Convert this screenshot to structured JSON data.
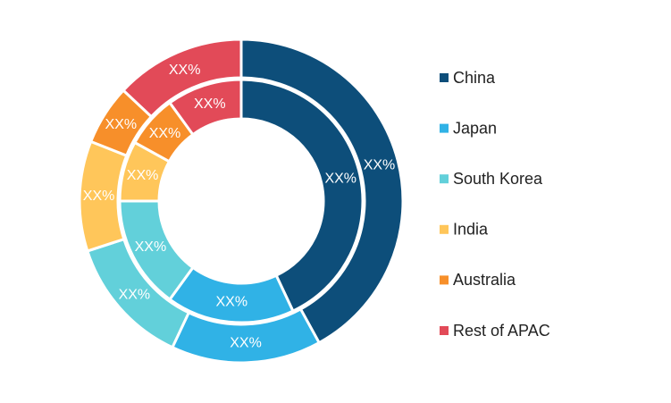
{
  "chart_data": {
    "type": "donut",
    "categories": [
      "China",
      "Japan",
      "South Korea",
      "India",
      "Australia",
      "Rest of APAC"
    ],
    "colors": [
      "#0d4e7a",
      "#30b2e6",
      "#62d0da",
      "#ffc65a",
      "#f78f2a",
      "#e24a58"
    ],
    "series": [
      {
        "values": [
          42,
          15,
          13,
          11,
          6,
          13
        ],
        "value_labels": [
          "XX%",
          "XX%",
          "XX%",
          "XX%",
          "XX%",
          "XX%"
        ]
      },
      {
        "values": [
          43,
          17,
          15,
          8,
          7,
          10
        ],
        "value_labels": [
          "XX%",
          "XX%",
          "XX%",
          "XX%",
          "XX%",
          "XX%"
        ]
      }
    ]
  }
}
